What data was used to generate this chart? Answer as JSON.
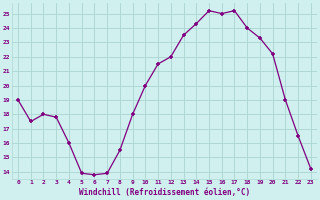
{
  "x": [
    0,
    1,
    2,
    3,
    4,
    5,
    6,
    7,
    8,
    9,
    10,
    11,
    12,
    13,
    14,
    15,
    16,
    17,
    18,
    19,
    20,
    21,
    22,
    23
  ],
  "y": [
    19,
    17.5,
    18,
    17.8,
    16,
    13.9,
    13.8,
    13.9,
    15.5,
    18,
    20,
    21.5,
    22,
    23.5,
    24.3,
    25.2,
    25,
    25.2,
    24,
    23.3,
    22.2,
    19,
    16.5,
    14.2
  ],
  "line_color": "#800080",
  "marker_color": "#800080",
  "bg_color": "#cff0ee",
  "grid_color": "#b0d8d5",
  "xlabel": "Windchill (Refroidissement éolien,°C)",
  "tick_color": "#800080",
  "ylabel_ticks": [
    14,
    15,
    16,
    17,
    18,
    19,
    20,
    21,
    22,
    23,
    24,
    25
  ],
  "xlim": [
    -0.5,
    23.5
  ],
  "ylim": [
    13.5,
    25.75
  ]
}
